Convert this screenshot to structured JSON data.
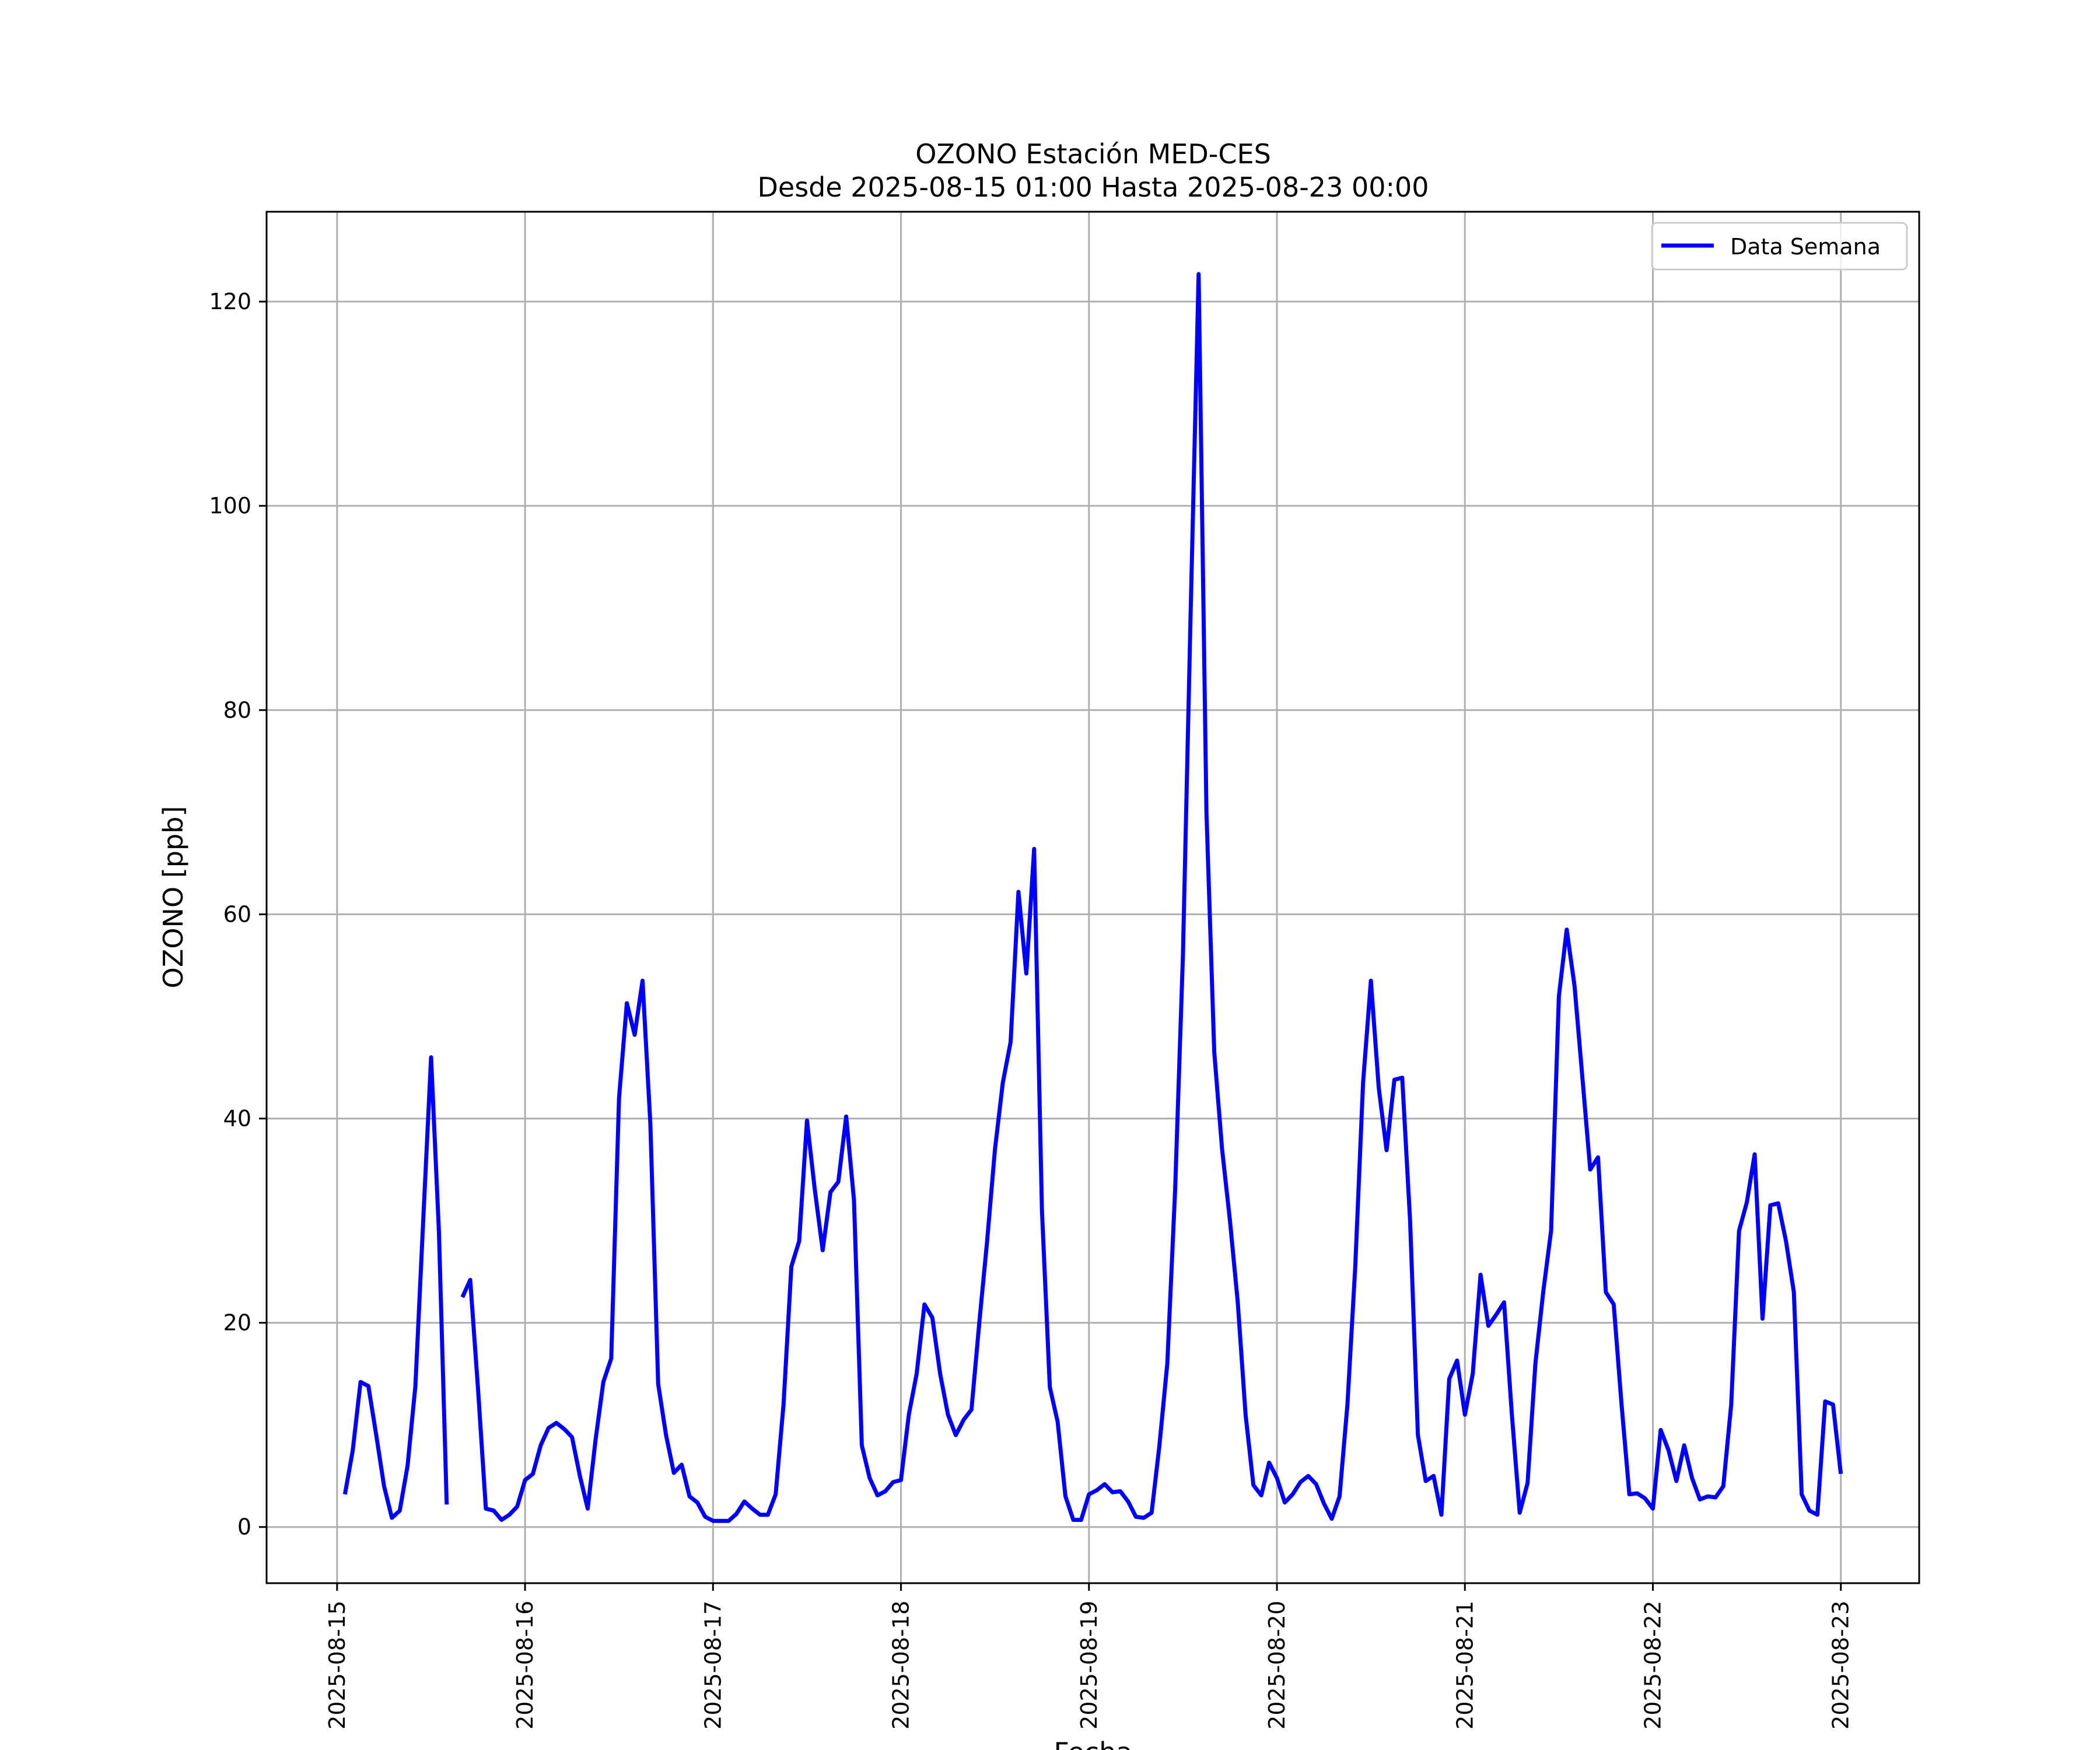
{
  "chart_data": {
    "type": "line",
    "title": "OZONO Estación MED-CES",
    "subtitle": "Desde 2025-08-15 01:00 Hasta 2025-08-23 00:00",
    "xlabel": "Fecha",
    "ylabel": "OZONO [ppb]",
    "ylim": [
      -5.5,
      128.8
    ],
    "xlim": [
      "2025-08-14 15:00",
      "2025-08-23 10:00"
    ],
    "grid": true,
    "legend_position": "top-right",
    "x_tick_labels": [
      "2025-08-15",
      "2025-08-16",
      "2025-08-17",
      "2025-08-18",
      "2025-08-19",
      "2025-08-20",
      "2025-08-21",
      "2025-08-22",
      "2025-08-23"
    ],
    "y_tick_labels": [
      "0",
      "20",
      "40",
      "60",
      "80",
      "100",
      "120"
    ],
    "series": [
      {
        "name": "Data Semana",
        "color": "#0000ff",
        "x": [
          "2025-08-15 01:00",
          "2025-08-15 02:00",
          "2025-08-15 03:00",
          "2025-08-15 04:00",
          "2025-08-15 05:00",
          "2025-08-15 06:00",
          "2025-08-15 07:00",
          "2025-08-15 08:00",
          "2025-08-15 09:00",
          "2025-08-15 10:00",
          "2025-08-15 11:00",
          "2025-08-15 12:00",
          "2025-08-15 13:00",
          "2025-08-15 14:00",
          "2025-08-15 16:00",
          "2025-08-15 17:00",
          "2025-08-15 18:00",
          "2025-08-15 19:00",
          "2025-08-15 20:00",
          "2025-08-15 21:00",
          "2025-08-15 22:00",
          "2025-08-15 23:00",
          "2025-08-16 00:00",
          "2025-08-16 01:00",
          "2025-08-16 02:00",
          "2025-08-16 03:00",
          "2025-08-16 04:00",
          "2025-08-16 05:00",
          "2025-08-16 06:00",
          "2025-08-16 07:00",
          "2025-08-16 08:00",
          "2025-08-16 09:00",
          "2025-08-16 10:00",
          "2025-08-16 11:00",
          "2025-08-16 12:00",
          "2025-08-16 13:00",
          "2025-08-16 14:00",
          "2025-08-16 15:00",
          "2025-08-16 16:00",
          "2025-08-16 17:00",
          "2025-08-16 18:00",
          "2025-08-16 19:00",
          "2025-08-16 20:00",
          "2025-08-16 21:00",
          "2025-08-16 22:00",
          "2025-08-16 23:00",
          "2025-08-17 00:00",
          "2025-08-17 01:00",
          "2025-08-17 02:00",
          "2025-08-17 03:00",
          "2025-08-17 04:00",
          "2025-08-17 05:00",
          "2025-08-17 06:00",
          "2025-08-17 07:00",
          "2025-08-17 08:00",
          "2025-08-17 09:00",
          "2025-08-17 10:00",
          "2025-08-17 11:00",
          "2025-08-17 12:00",
          "2025-08-17 13:00",
          "2025-08-17 14:00",
          "2025-08-17 15:00",
          "2025-08-17 16:00",
          "2025-08-17 17:00",
          "2025-08-17 18:00",
          "2025-08-17 19:00",
          "2025-08-17 20:00",
          "2025-08-17 21:00",
          "2025-08-17 22:00",
          "2025-08-17 23:00",
          "2025-08-18 00:00",
          "2025-08-18 01:00",
          "2025-08-18 02:00",
          "2025-08-18 03:00",
          "2025-08-18 04:00",
          "2025-08-18 05:00",
          "2025-08-18 06:00",
          "2025-08-18 07:00",
          "2025-08-18 08:00",
          "2025-08-18 09:00",
          "2025-08-18 10:00",
          "2025-08-18 11:00",
          "2025-08-18 12:00",
          "2025-08-18 13:00",
          "2025-08-18 14:00",
          "2025-08-18 15:00",
          "2025-08-18 16:00",
          "2025-08-18 17:00",
          "2025-08-18 18:00",
          "2025-08-18 19:00",
          "2025-08-18 20:00",
          "2025-08-18 21:00",
          "2025-08-18 22:00",
          "2025-08-18 23:00",
          "2025-08-19 00:00",
          "2025-08-19 01:00",
          "2025-08-19 02:00",
          "2025-08-19 03:00",
          "2025-08-19 04:00",
          "2025-08-19 05:00",
          "2025-08-19 06:00",
          "2025-08-19 07:00",
          "2025-08-19 08:00",
          "2025-08-19 09:00",
          "2025-08-19 10:00",
          "2025-08-19 11:00",
          "2025-08-19 12:00",
          "2025-08-19 13:00",
          "2025-08-19 14:00",
          "2025-08-19 15:00",
          "2025-08-19 16:00",
          "2025-08-19 17:00",
          "2025-08-19 18:00",
          "2025-08-19 19:00",
          "2025-08-19 20:00",
          "2025-08-19 21:00",
          "2025-08-19 22:00",
          "2025-08-19 23:00",
          "2025-08-20 00:00",
          "2025-08-20 01:00",
          "2025-08-20 02:00",
          "2025-08-20 03:00",
          "2025-08-20 04:00",
          "2025-08-20 05:00",
          "2025-08-20 06:00",
          "2025-08-20 07:00",
          "2025-08-20 08:00",
          "2025-08-20 09:00",
          "2025-08-20 10:00",
          "2025-08-20 11:00",
          "2025-08-20 12:00",
          "2025-08-20 13:00",
          "2025-08-20 14:00",
          "2025-08-20 15:00",
          "2025-08-20 16:00",
          "2025-08-20 17:00",
          "2025-08-20 18:00",
          "2025-08-20 19:00",
          "2025-08-20 20:00",
          "2025-08-20 21:00",
          "2025-08-20 22:00",
          "2025-08-20 23:00",
          "2025-08-21 00:00",
          "2025-08-21 01:00",
          "2025-08-21 02:00",
          "2025-08-21 03:00",
          "2025-08-21 04:00",
          "2025-08-21 05:00",
          "2025-08-21 06:00",
          "2025-08-21 07:00",
          "2025-08-21 08:00",
          "2025-08-21 09:00",
          "2025-08-21 10:00",
          "2025-08-21 11:00",
          "2025-08-21 12:00",
          "2025-08-21 13:00",
          "2025-08-21 14:00",
          "2025-08-21 15:00",
          "2025-08-21 16:00",
          "2025-08-21 17:00",
          "2025-08-21 18:00",
          "2025-08-21 19:00",
          "2025-08-21 20:00",
          "2025-08-21 21:00",
          "2025-08-21 22:00",
          "2025-08-21 23:00",
          "2025-08-22 00:00",
          "2025-08-22 01:00",
          "2025-08-22 02:00",
          "2025-08-22 03:00",
          "2025-08-22 04:00",
          "2025-08-22 05:00",
          "2025-08-22 06:00",
          "2025-08-22 07:00",
          "2025-08-22 08:00",
          "2025-08-22 09:00",
          "2025-08-22 10:00",
          "2025-08-22 11:00",
          "2025-08-22 12:00",
          "2025-08-22 13:00",
          "2025-08-22 14:00",
          "2025-08-22 15:00",
          "2025-08-22 16:00",
          "2025-08-22 17:00",
          "2025-08-22 18:00",
          "2025-08-22 19:00",
          "2025-08-22 20:00",
          "2025-08-22 21:00",
          "2025-08-22 22:00",
          "2025-08-22 23:00",
          "2025-08-23 00:00"
        ],
        "segments": [
          [
            3.2,
            7.5,
            14.2,
            13.8,
            9.0,
            4.0,
            0.9,
            1.6,
            6.0,
            13.8,
            30.0,
            46.0,
            29.0,
            2.2
          ],
          [
            22.5,
            24.2,
            13.5,
            1.8,
            1.6,
            0.7,
            1.2,
            2.0,
            4.6,
            5.2,
            8.0,
            9.7,
            10.2,
            9.6,
            8.8,
            5.0,
            1.8,
            8.5,
            14.2,
            16.5,
            42.0,
            51.3,
            48.2,
            53.5,
            39.5,
            14.0,
            9.0,
            5.3,
            6.1,
            3.0,
            2.4,
            1.0,
            0.6,
            0.6,
            0.6,
            1.3,
            2.5,
            1.8,
            1.2,
            1.2,
            3.2,
            12.0,
            25.5,
            28.0,
            39.8,
            33.0,
            27.1,
            32.8,
            33.8,
            40.2,
            32.0,
            8.0,
            4.8,
            3.1,
            3.5,
            4.4,
            4.6,
            11.0,
            15.0,
            21.8,
            20.5,
            15.0,
            11.0,
            9.0,
            10.5,
            11.5,
            20.0,
            28.0,
            37.0,
            43.5,
            47.5,
            62.2,
            54.2,
            66.4,
            31.0,
            13.7,
            10.3,
            3.0,
            0.7,
            0.7,
            3.2,
            3.6,
            4.2,
            3.4,
            3.5,
            2.5,
            1.0,
            0.9,
            1.4,
            8.0,
            16.0,
            33.0,
            56.0,
            90.0,
            122.7,
            70.0,
            46.5,
            37.0,
            30.0,
            22.0,
            11.0,
            4.1,
            3.1,
            6.3,
            4.8,
            2.4,
            3.2,
            4.4,
            5.0,
            4.2,
            2.3,
            0.8,
            3.0,
            12.0,
            25.5,
            43.5,
            53.5,
            43.0,
            36.9,
            43.8,
            44.0,
            30.0,
            9.0,
            4.5,
            5.0,
            1.2,
            14.5,
            16.3,
            11.0,
            15.0,
            24.7,
            19.7,
            20.8,
            22.0,
            11.0,
            1.4,
            4.3,
            16.0,
            23.0,
            29.0,
            52.0,
            58.5,
            53.0,
            44.0,
            35.0,
            36.2,
            23.0,
            21.8,
            12.0,
            3.2,
            3.3,
            2.8,
            1.8,
            9.5,
            7.5,
            4.5,
            8.0,
            4.8,
            2.7,
            3.0,
            2.9,
            4.0,
            12.0,
            29.0,
            31.8,
            36.5,
            20.4,
            31.5,
            31.7,
            28.0,
            23.0,
            3.2,
            1.6,
            1.2,
            12.3,
            12.0,
            5.2
          ]
        ]
      }
    ]
  }
}
